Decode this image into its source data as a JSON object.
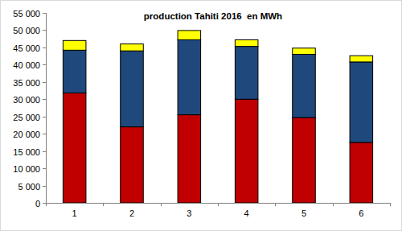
{
  "chart_data": {
    "type": "bar",
    "title": "production Tahiti 2016  en MWh",
    "categories": [
      "1",
      "2",
      "3",
      "4",
      "5",
      "6"
    ],
    "stacked": true,
    "grid": false,
    "series": [
      {
        "color": "#c00000",
        "values": [
          31800,
          22000,
          25500,
          30000,
          24700,
          17500
        ]
      },
      {
        "color": "#1f497d",
        "values": [
          12400,
          22000,
          21700,
          15300,
          18300,
          23300
        ]
      },
      {
        "color": "#ffff00",
        "values": [
          2800,
          2000,
          2700,
          1900,
          1800,
          1800
        ]
      }
    ],
    "ylim": [
      0,
      55000
    ],
    "yticks": [
      0,
      {
        "value": 5000,
        "label": "5 000"
      },
      {
        "value": 10000,
        "label": "10 000"
      },
      {
        "value": 15000,
        "label": "15 000"
      },
      {
        "value": 20000,
        "label": "20 000"
      },
      {
        "value": 25000,
        "label": "25 000"
      },
      {
        "value": 30000,
        "label": "30 000"
      },
      {
        "value": 35000,
        "label": "35 000"
      },
      {
        "value": 40000,
        "label": "40 000"
      },
      {
        "value": 45000,
        "label": "45 000"
      },
      {
        "value": 50000,
        "label": "50 000"
      },
      {
        "value": 55000,
        "label": "55 000"
      }
    ]
  }
}
